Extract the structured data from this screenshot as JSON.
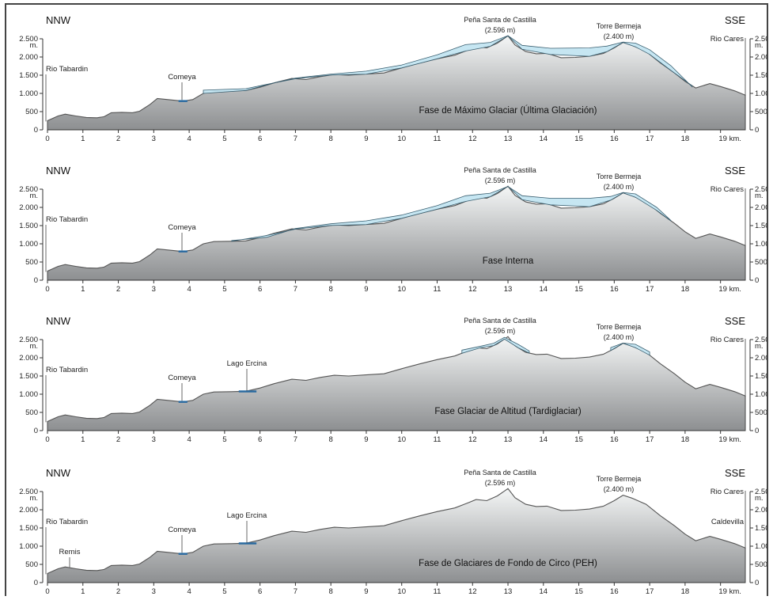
{
  "direction_left": "NNW",
  "direction_right": "SSE",
  "peaks": {
    "pena_name": "Peña Santa de Castilla",
    "pena_alt": "(2.596 m)",
    "torre_name": "Torre Bermeja",
    "torre_alt": "(2.400 m)"
  },
  "y_axis": {
    "left_ticks": [
      "2.500\nm.",
      "2.000",
      "1.500",
      "1.000",
      "500",
      "0"
    ],
    "right_ticks": [
      "2.50\nm.",
      "2.00",
      "1.50",
      "1.00",
      "500",
      "0"
    ]
  },
  "x_axis": {
    "ticks": [
      "0",
      "1",
      "2",
      "3",
      "4",
      "5",
      "6",
      "7",
      "8",
      "9",
      "10",
      "11",
      "12",
      "13",
      "14",
      "15",
      "16",
      "17",
      "18",
      "19 km."
    ]
  },
  "labels": {
    "rio_tabardin": "Rio Tabardin",
    "rio_cares": "Rio Cares",
    "comeya": "Comeya",
    "lago_ercina": "Lago Ercina",
    "remis": "Remis",
    "caldevilla": "Caldevilla"
  },
  "panels": [
    {
      "phase": "Fase de Máximo Glaciar (Última Glaciación)",
      "ice": "max",
      "show_lago": false,
      "show_remis": false
    },
    {
      "phase": "Fase Interna",
      "ice": "internal",
      "show_lago": false,
      "show_remis": false
    },
    {
      "phase": "Fase Glaciar de Altitud (Tardiglaciar)",
      "ice": "altitude",
      "show_lago": true,
      "show_remis": false
    },
    {
      "phase": "Fase de Glaciares de Fondo de Circo (PEH)",
      "ice": "none",
      "show_lago": true,
      "show_remis": true
    }
  ],
  "colors": {
    "terrain_top": "#f4f6f6",
    "terrain_bottom": "#8d8f91",
    "ice": "#c6e6f2",
    "ice_stroke": "#3a5f70",
    "lake": "#2a6aa0"
  }
}
